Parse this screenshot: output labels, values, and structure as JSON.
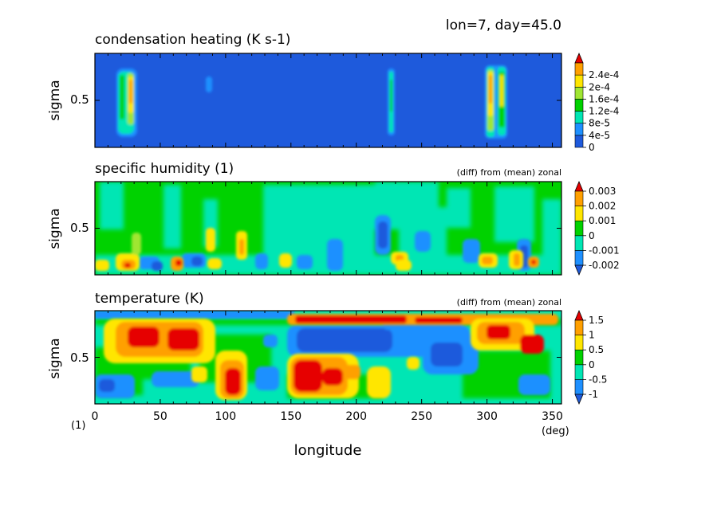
{
  "header": {
    "text": "lon=7, day=45.0"
  },
  "panels": [
    {
      "title": "condensation heating (K s-1)",
      "note": "",
      "ylabel": "sigma",
      "ytick": "0.5",
      "colorbar": {
        "labels": [
          "0",
          "4e-5",
          "8e-5",
          "1.2e-4",
          "1.6e-4",
          "2e-4",
          "2.4e-4"
        ],
        "colors": [
          "#1e5adc",
          "#1e90ff",
          "#00e6b4",
          "#00d200",
          "#a0e632",
          "#ffe600",
          "#ffa000",
          "#e60000"
        ]
      }
    },
    {
      "title": "specific humidity (1)",
      "note": "(diff) from (mean) zonal",
      "ylabel": "sigma",
      "ytick": "0.5",
      "colorbar": {
        "labels": [
          "-0.002",
          "-0.001",
          "0",
          "0.001",
          "0.002",
          "0.003"
        ],
        "colors": [
          "#1e5adc",
          "#1e90ff",
          "#00e6b4",
          "#00d200",
          "#ffe600",
          "#ffa000",
          "#e60000"
        ]
      }
    },
    {
      "title": "temperature (K)",
      "note": "(diff) from (mean) zonal",
      "ylabel": "sigma",
      "ytick": "0.5",
      "colorbar": {
        "labels": [
          "-1",
          "-0.5",
          "0",
          "0.5",
          "1",
          "1.5"
        ],
        "colors": [
          "#1e5adc",
          "#1e90ff",
          "#00e6b4",
          "#00d200",
          "#ffe600",
          "#ffa000",
          "#e60000"
        ]
      }
    }
  ],
  "chart_data": {
    "type": "heatmap",
    "xlabel": "longitude",
    "xunit": "(deg)",
    "yunit": "(1)",
    "xlim": [
      0,
      357
    ],
    "xticks": [
      0,
      50,
      100,
      150,
      200,
      250,
      300,
      350
    ],
    "ylim": [
      0,
      1
    ],
    "ytick_value": 0.5,
    "panels": [
      {
        "field": "condensation heating",
        "background": 0,
        "features": [
          {
            "lon": 18,
            "sigma": 0.48,
            "value": 0.000125
          },
          {
            "lon": 24,
            "sigma": 0.55,
            "value": 0.00018
          },
          {
            "lon": 30,
            "sigma": 0.5,
            "value": 0.0001
          },
          {
            "lon": 87,
            "sigma": 0.7,
            "value": 4e-05
          },
          {
            "lon": 226,
            "sigma": 0.5,
            "value": 9e-05
          },
          {
            "lon": 302,
            "sigma": 0.55,
            "value": 0.0002
          },
          {
            "lon": 312,
            "sigma": 0.55,
            "value": 0.00015
          }
        ]
      },
      {
        "field": "specific humidity",
        "background": 0,
        "features": [
          {
            "lon": 5,
            "sigma": 0.12,
            "value": 0.0015
          },
          {
            "lon": 30,
            "sigma": 0.15,
            "value": 0.002
          },
          {
            "lon": 45,
            "sigma": 0.12,
            "value": 0.002
          },
          {
            "lon": 65,
            "sigma": 0.1,
            "value": -0.0015
          },
          {
            "lon": 86,
            "sigma": 0.2,
            "value": 0.0025
          },
          {
            "lon": 110,
            "sigma": 0.15,
            "value": -0.001
          },
          {
            "lon": 140,
            "sigma": 0.2,
            "value": 0.002
          },
          {
            "lon": 165,
            "sigma": 0.15,
            "value": -0.0012
          },
          {
            "lon": 220,
            "sigma": 0.35,
            "value": -0.0015
          },
          {
            "lon": 235,
            "sigma": 0.15,
            "value": 0.002
          },
          {
            "lon": 295,
            "sigma": 0.2,
            "value": 0.002
          },
          {
            "lon": 320,
            "sigma": 0.15,
            "value": 0.003
          },
          {
            "lon": 330,
            "sigma": 0.3,
            "value": -0.0012
          }
        ]
      },
      {
        "field": "temperature",
        "background": -0.5,
        "features": [
          {
            "lon": 35,
            "sigma": 0.75,
            "value": 1.5
          },
          {
            "lon": 70,
            "sigma": 0.7,
            "value": 1.2
          },
          {
            "lon": 105,
            "sigma": 0.3,
            "value": 1.5
          },
          {
            "lon": 165,
            "sigma": 0.3,
            "value": 1.5
          },
          {
            "lon": 200,
            "sigma": 0.93,
            "value": 1.5
          },
          {
            "lon": 240,
            "sigma": 0.93,
            "value": 1.2
          },
          {
            "lon": 320,
            "sigma": 0.75,
            "value": 1.2
          },
          {
            "lon": 200,
            "sigma": 0.6,
            "value": -1
          },
          {
            "lon": 260,
            "sigma": 0.55,
            "value": -1
          },
          {
            "lon": 15,
            "sigma": 0.2,
            "value": -1
          }
        ]
      }
    ]
  }
}
